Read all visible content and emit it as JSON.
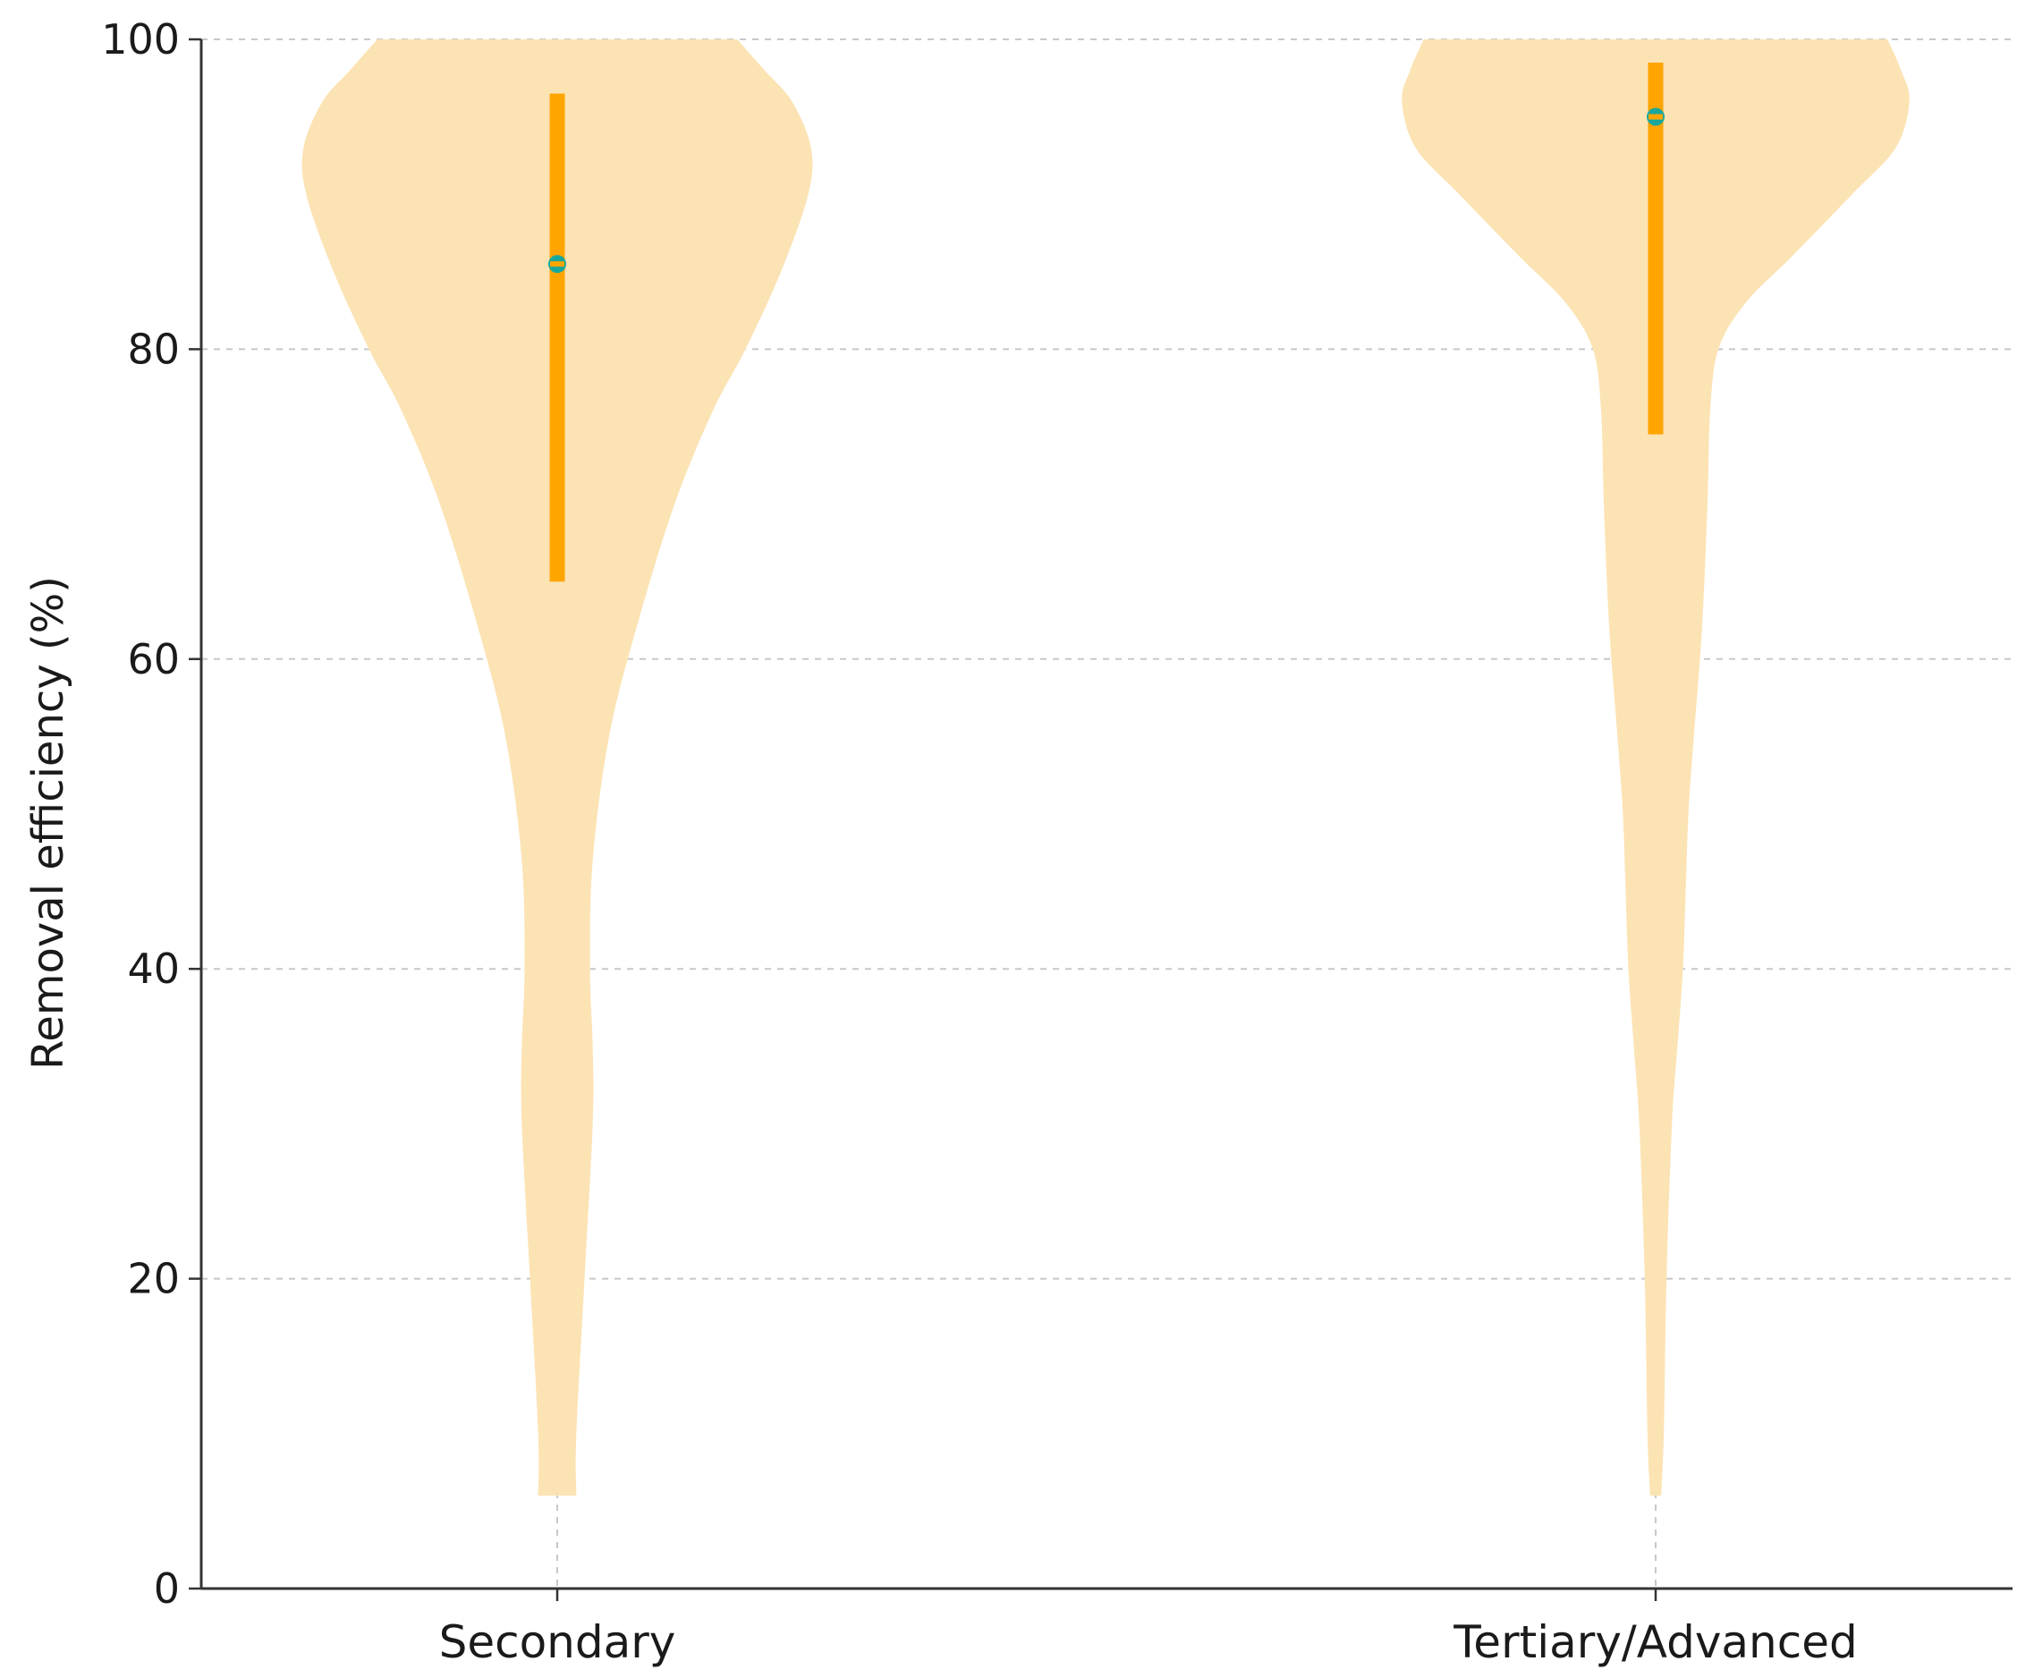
{
  "chart_data": {
    "type": "violin",
    "title": "",
    "xlabel": "",
    "ylabel": "Removal efficiency (%)",
    "ylim": [
      0,
      100
    ],
    "yticks": [
      0,
      20,
      40,
      60,
      80,
      100
    ],
    "grid": true,
    "categories": [
      "Secondary",
      "Tertiary/Advanced"
    ],
    "violins": [
      {
        "category": "Secondary",
        "data_min": 6,
        "data_max": 100,
        "median": 85.5,
        "iqr": [
          65,
          96.5
        ],
        "density_profile": [
          {
            "y": 6,
            "w": 0.07
          },
          {
            "y": 10,
            "w": 0.07
          },
          {
            "y": 20,
            "w": 0.1
          },
          {
            "y": 30,
            "w": 0.13
          },
          {
            "y": 35,
            "w": 0.13
          },
          {
            "y": 40,
            "w": 0.12
          },
          {
            "y": 47,
            "w": 0.13
          },
          {
            "y": 55,
            "w": 0.19
          },
          {
            "y": 62,
            "w": 0.29
          },
          {
            "y": 70,
            "w": 0.43
          },
          {
            "y": 76,
            "w": 0.57
          },
          {
            "y": 80,
            "w": 0.69
          },
          {
            "y": 85,
            "w": 0.82
          },
          {
            "y": 90,
            "w": 0.92
          },
          {
            "y": 93,
            "w": 0.93
          },
          {
            "y": 96,
            "w": 0.86
          },
          {
            "y": 98,
            "w": 0.76
          },
          {
            "y": 100,
            "w": 0.66
          }
        ]
      },
      {
        "category": "Tertiary/Advanced",
        "data_min": 6,
        "data_max": 100,
        "median": 95,
        "iqr": [
          74.5,
          98.5
        ],
        "density_profile": [
          {
            "y": 6,
            "w": 0.02
          },
          {
            "y": 10,
            "w": 0.03
          },
          {
            "y": 20,
            "w": 0.04
          },
          {
            "y": 30,
            "w": 0.06
          },
          {
            "y": 35,
            "w": 0.08
          },
          {
            "y": 40,
            "w": 0.1
          },
          {
            "y": 45,
            "w": 0.11
          },
          {
            "y": 50,
            "w": 0.12
          },
          {
            "y": 55,
            "w": 0.14
          },
          {
            "y": 62,
            "w": 0.17
          },
          {
            "y": 70,
            "w": 0.19
          },
          {
            "y": 76,
            "w": 0.2
          },
          {
            "y": 80,
            "w": 0.23
          },
          {
            "y": 83,
            "w": 0.33
          },
          {
            "y": 86,
            "w": 0.5
          },
          {
            "y": 90,
            "w": 0.72
          },
          {
            "y": 93,
            "w": 0.88
          },
          {
            "y": 96,
            "w": 0.93
          },
          {
            "y": 98,
            "w": 0.9
          },
          {
            "y": 100,
            "w": 0.85
          }
        ]
      }
    ],
    "colors": {
      "violin_fill": "#fce3b4",
      "iqr_bar": "#ffa500",
      "median_marker": "#1aa79b",
      "grid": "#c8c8c8",
      "axis": "#333333"
    }
  }
}
